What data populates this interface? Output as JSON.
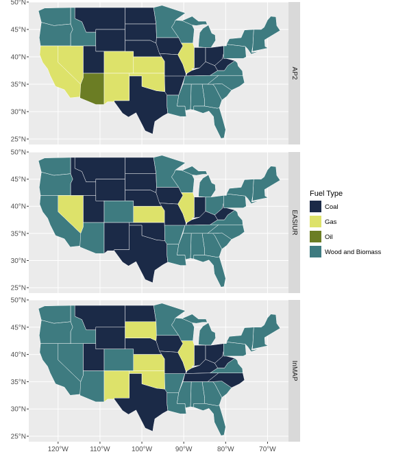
{
  "chart_data": {
    "type": "map",
    "projection": "lon/lat",
    "xlim": [
      -127,
      -65
    ],
    "ylim": [
      24,
      50
    ],
    "x_ticks": [
      {
        "value": -120,
        "label": "120°W"
      },
      {
        "value": -110,
        "label": "110°W"
      },
      {
        "value": -100,
        "label": "100°W"
      },
      {
        "value": -90,
        "label": "90°W"
      },
      {
        "value": -80,
        "label": "80°W"
      },
      {
        "value": -70,
        "label": "70°W"
      }
    ],
    "y_ticks": [
      {
        "value": 25,
        "label": "25°N"
      },
      {
        "value": 30,
        "label": "30°N"
      },
      {
        "value": 35,
        "label": "35°N"
      },
      {
        "value": 40,
        "label": "40°N"
      },
      {
        "value": 45,
        "label": "45°N"
      },
      {
        "value": 50,
        "label": "50°N"
      }
    ],
    "grid": true,
    "legend": {
      "title": "Fuel Type",
      "position": "right",
      "entries": [
        {
          "key": "coal",
          "label": "Coal",
          "color": "#1b2a47"
        },
        {
          "key": "gas",
          "label": "Gas",
          "color": "#dde26a"
        },
        {
          "key": "oil",
          "label": "Oil",
          "color": "#6b7d24"
        },
        {
          "key": "wood",
          "label": "Wood and Biomass",
          "color": "#3e7b80"
        }
      ]
    },
    "panels": [
      {
        "strip": "AP2",
        "regions": [
          {
            "name": "Washington",
            "fuel": "wood"
          },
          {
            "name": "Oregon",
            "fuel": "wood"
          },
          {
            "name": "California",
            "fuel": "gas"
          },
          {
            "name": "Nevada",
            "fuel": "gas"
          },
          {
            "name": "Idaho",
            "fuel": "wood"
          },
          {
            "name": "Montana",
            "fuel": "coal"
          },
          {
            "name": "Wyoming",
            "fuel": "coal"
          },
          {
            "name": "Utah",
            "fuel": "coal"
          },
          {
            "name": "Arizona",
            "fuel": "oil"
          },
          {
            "name": "Colorado",
            "fuel": "gas"
          },
          {
            "name": "New Mexico",
            "fuel": "gas"
          },
          {
            "name": "North Dakota",
            "fuel": "coal"
          },
          {
            "name": "South Dakota",
            "fuel": "coal"
          },
          {
            "name": "Nebraska",
            "fuel": "coal"
          },
          {
            "name": "Kansas",
            "fuel": "gas"
          },
          {
            "name": "Oklahoma",
            "fuel": "gas"
          },
          {
            "name": "Texas",
            "fuel": "coal"
          },
          {
            "name": "Minnesota",
            "fuel": "wood"
          },
          {
            "name": "Iowa",
            "fuel": "coal"
          },
          {
            "name": "Missouri",
            "fuel": "coal"
          },
          {
            "name": "Arkansas",
            "fuel": "coal"
          },
          {
            "name": "Louisiana",
            "fuel": "wood"
          },
          {
            "name": "Wisconsin",
            "fuel": "wood"
          },
          {
            "name": "Illinois",
            "fuel": "gas"
          },
          {
            "name": "Michigan",
            "fuel": "wood"
          },
          {
            "name": "Indiana",
            "fuel": "coal"
          },
          {
            "name": "Ohio",
            "fuel": "coal"
          },
          {
            "name": "Kentucky",
            "fuel": "coal"
          },
          {
            "name": "Tennessee",
            "fuel": "wood"
          },
          {
            "name": "Mississippi",
            "fuel": "wood"
          },
          {
            "name": "Alabama",
            "fuel": "wood"
          },
          {
            "name": "Georgia",
            "fuel": "wood"
          },
          {
            "name": "Florida",
            "fuel": "wood"
          },
          {
            "name": "South Carolina",
            "fuel": "wood"
          },
          {
            "name": "North Carolina",
            "fuel": "wood"
          },
          {
            "name": "Virginia",
            "fuel": "wood"
          },
          {
            "name": "West Virginia",
            "fuel": "coal"
          },
          {
            "name": "Pennsylvania",
            "fuel": "wood"
          },
          {
            "name": "New York",
            "fuel": "wood"
          },
          {
            "name": "New England",
            "fuel": "wood"
          }
        ]
      },
      {
        "strip": "EASIUR",
        "regions": [
          {
            "name": "Washington",
            "fuel": "wood"
          },
          {
            "name": "Oregon",
            "fuel": "wood"
          },
          {
            "name": "California",
            "fuel": "wood"
          },
          {
            "name": "Nevada",
            "fuel": "gas"
          },
          {
            "name": "Idaho",
            "fuel": "coal"
          },
          {
            "name": "Montana",
            "fuel": "coal"
          },
          {
            "name": "Wyoming",
            "fuel": "coal"
          },
          {
            "name": "Utah",
            "fuel": "coal"
          },
          {
            "name": "Arizona",
            "fuel": "wood"
          },
          {
            "name": "Colorado",
            "fuel": "wood"
          },
          {
            "name": "New Mexico",
            "fuel": "coal"
          },
          {
            "name": "North Dakota",
            "fuel": "coal"
          },
          {
            "name": "South Dakota",
            "fuel": "coal"
          },
          {
            "name": "Nebraska",
            "fuel": "coal"
          },
          {
            "name": "Kansas",
            "fuel": "gas"
          },
          {
            "name": "Oklahoma",
            "fuel": "coal"
          },
          {
            "name": "Texas",
            "fuel": "coal"
          },
          {
            "name": "Minnesota",
            "fuel": "wood"
          },
          {
            "name": "Iowa",
            "fuel": "coal"
          },
          {
            "name": "Missouri",
            "fuel": "coal"
          },
          {
            "name": "Arkansas",
            "fuel": "wood"
          },
          {
            "name": "Louisiana",
            "fuel": "wood"
          },
          {
            "name": "Wisconsin",
            "fuel": "wood"
          },
          {
            "name": "Illinois",
            "fuel": "gas"
          },
          {
            "name": "Michigan",
            "fuel": "wood"
          },
          {
            "name": "Indiana",
            "fuel": "coal"
          },
          {
            "name": "Ohio",
            "fuel": "wood"
          },
          {
            "name": "Kentucky",
            "fuel": "coal"
          },
          {
            "name": "Tennessee",
            "fuel": "wood"
          },
          {
            "name": "Mississippi",
            "fuel": "wood"
          },
          {
            "name": "Alabama",
            "fuel": "wood"
          },
          {
            "name": "Georgia",
            "fuel": "wood"
          },
          {
            "name": "Florida",
            "fuel": "wood"
          },
          {
            "name": "South Carolina",
            "fuel": "wood"
          },
          {
            "name": "North Carolina",
            "fuel": "wood"
          },
          {
            "name": "Virginia",
            "fuel": "wood"
          },
          {
            "name": "West Virginia",
            "fuel": "coal"
          },
          {
            "name": "Pennsylvania",
            "fuel": "wood"
          },
          {
            "name": "New York",
            "fuel": "wood"
          },
          {
            "name": "New England",
            "fuel": "wood"
          }
        ]
      },
      {
        "strip": "InMAP",
        "regions": [
          {
            "name": "Washington",
            "fuel": "wood"
          },
          {
            "name": "Oregon",
            "fuel": "wood"
          },
          {
            "name": "California",
            "fuel": "wood"
          },
          {
            "name": "Nevada",
            "fuel": "wood"
          },
          {
            "name": "Idaho",
            "fuel": "wood"
          },
          {
            "name": "Montana",
            "fuel": "coal"
          },
          {
            "name": "Wyoming",
            "fuel": "coal"
          },
          {
            "name": "Utah",
            "fuel": "coal"
          },
          {
            "name": "Arizona",
            "fuel": "wood"
          },
          {
            "name": "Colorado",
            "fuel": "wood"
          },
          {
            "name": "New Mexico",
            "fuel": "gas"
          },
          {
            "name": "North Dakota",
            "fuel": "coal"
          },
          {
            "name": "South Dakota",
            "fuel": "gas"
          },
          {
            "name": "Nebraska",
            "fuel": "coal"
          },
          {
            "name": "Kansas",
            "fuel": "gas"
          },
          {
            "name": "Oklahoma",
            "fuel": "gas"
          },
          {
            "name": "Texas",
            "fuel": "coal"
          },
          {
            "name": "Minnesota",
            "fuel": "wood"
          },
          {
            "name": "Iowa",
            "fuel": "coal"
          },
          {
            "name": "Missouri",
            "fuel": "coal"
          },
          {
            "name": "Arkansas",
            "fuel": "wood"
          },
          {
            "name": "Louisiana",
            "fuel": "wood"
          },
          {
            "name": "Wisconsin",
            "fuel": "wood"
          },
          {
            "name": "Illinois",
            "fuel": "gas"
          },
          {
            "name": "Michigan",
            "fuel": "wood"
          },
          {
            "name": "Indiana",
            "fuel": "coal"
          },
          {
            "name": "Ohio",
            "fuel": "coal"
          },
          {
            "name": "Kentucky",
            "fuel": "coal"
          },
          {
            "name": "Tennessee",
            "fuel": "coal"
          },
          {
            "name": "Mississippi",
            "fuel": "wood"
          },
          {
            "name": "Alabama",
            "fuel": "wood"
          },
          {
            "name": "Georgia",
            "fuel": "wood"
          },
          {
            "name": "Florida",
            "fuel": "wood"
          },
          {
            "name": "South Carolina",
            "fuel": "wood"
          },
          {
            "name": "North Carolina",
            "fuel": "coal"
          },
          {
            "name": "Virginia",
            "fuel": "wood"
          },
          {
            "name": "West Virginia",
            "fuel": "coal"
          },
          {
            "name": "Pennsylvania",
            "fuel": "wood"
          },
          {
            "name": "New York",
            "fuel": "wood"
          },
          {
            "name": "New England",
            "fuel": "wood"
          }
        ]
      }
    ]
  }
}
